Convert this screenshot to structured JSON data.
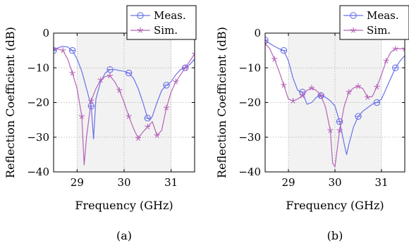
{
  "chart_data": [
    {
      "type": "line",
      "caption": "(a)",
      "xlabel": "Frequency (GHz)",
      "ylabel": "Reflection Coefficient (dB)",
      "xlim": [
        28.5,
        31.5
      ],
      "ylim": [
        -40,
        0
      ],
      "xticks": [
        "29",
        "30",
        "31"
      ],
      "yticks": [
        "0",
        "−10",
        "−20",
        "−30",
        "−40"
      ],
      "grid": true,
      "shaded_band": [
        29.0,
        31.0
      ],
      "legend_position": "top-right",
      "series": [
        {
          "name": "Meas.",
          "color": "#6b72e8",
          "marker": "circle",
          "markers_at": [
            28.5,
            28.9,
            29.3,
            29.7,
            30.1,
            30.5,
            30.9,
            31.3
          ],
          "x": [
            28.5,
            28.6,
            28.7,
            28.8,
            28.9,
            29.0,
            29.1,
            29.2,
            29.3,
            29.35,
            29.4,
            29.5,
            29.6,
            29.7,
            29.8,
            29.9,
            30.0,
            30.1,
            30.2,
            30.3,
            30.4,
            30.5,
            30.55,
            30.6,
            30.7,
            30.8,
            30.9,
            31.0,
            31.1,
            31.2,
            31.3,
            31.4,
            31.5
          ],
          "y": [
            -5,
            -4.2,
            -3.8,
            -4,
            -5,
            -7.5,
            -11,
            -16,
            -21,
            -30.5,
            -19,
            -14,
            -11.5,
            -10.5,
            -10.5,
            -10.8,
            -11,
            -11.5,
            -13,
            -16,
            -20,
            -24.5,
            -25,
            -24,
            -20,
            -16.5,
            -15,
            -14,
            -12,
            -10.5,
            -10,
            -9,
            -7.5
          ]
        },
        {
          "name": "Sim.",
          "color": "#b564b8",
          "marker": "star",
          "markers_at": [
            28.5,
            28.7,
            28.9,
            29.1,
            29.3,
            29.5,
            29.7,
            29.9,
            30.1,
            30.3,
            30.5,
            30.7,
            30.9,
            31.1,
            31.3,
            31.5
          ],
          "x": [
            28.5,
            28.6,
            28.7,
            28.8,
            28.9,
            29.0,
            29.1,
            29.15,
            29.2,
            29.3,
            29.4,
            29.5,
            29.6,
            29.7,
            29.8,
            29.9,
            30.0,
            30.1,
            30.2,
            30.3,
            30.4,
            30.5,
            30.6,
            30.7,
            30.8,
            30.9,
            31.0,
            31.1,
            31.2,
            31.3,
            31.4,
            31.5
          ],
          "y": [
            -4.5,
            -4.6,
            -5,
            -7.5,
            -11.5,
            -16,
            -24,
            -38,
            -30,
            -19.5,
            -16,
            -13.5,
            -12.5,
            -12.3,
            -14,
            -16.5,
            -20,
            -24,
            -27.5,
            -30.3,
            -28.5,
            -27,
            -25.5,
            -29.5,
            -28,
            -21.5,
            -17,
            -14,
            -12,
            -10,
            -8,
            -6
          ]
        }
      ]
    },
    {
      "type": "line",
      "caption": "(b)",
      "xlabel": "Frequency (GHz)",
      "ylabel": "Reflection Coefficient (dB)",
      "xlim": [
        28.5,
        31.5
      ],
      "ylim": [
        -40,
        0
      ],
      "xticks": [
        "29",
        "30",
        "31"
      ],
      "yticks": [
        "0",
        "−10",
        "−20",
        "−30",
        "−40"
      ],
      "grid": true,
      "shaded_band": [
        29.0,
        31.0
      ],
      "legend_position": "top-right",
      "series": [
        {
          "name": "Meas.",
          "color": "#6b72e8",
          "marker": "circle",
          "markers_at": [
            28.5,
            28.9,
            29.3,
            29.7,
            30.1,
            30.5,
            30.9,
            31.3
          ],
          "x": [
            28.5,
            28.6,
            28.7,
            28.8,
            28.9,
            29.0,
            29.1,
            29.2,
            29.3,
            29.4,
            29.5,
            29.6,
            29.7,
            29.8,
            29.9,
            30.0,
            30.1,
            30.2,
            30.25,
            30.3,
            30.4,
            30.5,
            30.6,
            30.7,
            30.8,
            30.9,
            31.0,
            31.1,
            31.2,
            31.3,
            31.4,
            31.5
          ],
          "y": [
            -2,
            -3,
            -3.8,
            -4.5,
            -5,
            -8,
            -13,
            -16.5,
            -17,
            -20.5,
            -20,
            -18.5,
            -18,
            -18.5,
            -19.5,
            -21,
            -25.5,
            -32,
            -35,
            -32,
            -27,
            -24,
            -22.5,
            -21.5,
            -20.5,
            -20,
            -19,
            -16,
            -13,
            -10,
            -8,
            -6.5
          ]
        },
        {
          "name": "Sim.",
          "color": "#b564b8",
          "marker": "star",
          "markers_at": [
            28.5,
            28.7,
            28.9,
            29.1,
            29.3,
            29.5,
            29.7,
            29.9,
            30.1,
            30.3,
            30.5,
            30.7,
            30.9,
            31.1,
            31.3,
            31.5
          ],
          "x": [
            28.5,
            28.6,
            28.7,
            28.8,
            28.9,
            29.0,
            29.1,
            29.2,
            29.3,
            29.4,
            29.5,
            29.6,
            29.7,
            29.8,
            29.9,
            29.95,
            30.0,
            30.1,
            30.2,
            30.3,
            30.4,
            30.5,
            30.6,
            30.7,
            30.8,
            30.9,
            31.0,
            31.1,
            31.2,
            31.3,
            31.4,
            31.5
          ],
          "y": [
            -3,
            -4.5,
            -7.5,
            -11,
            -15,
            -19,
            -19.5,
            -19,
            -18,
            -16.5,
            -15.8,
            -16.5,
            -18,
            -21.5,
            -28,
            -37.5,
            -38.5,
            -28,
            -21,
            -17,
            -15.8,
            -15.3,
            -16,
            -18.5,
            -18.3,
            -15.5,
            -12,
            -8,
            -5.5,
            -4.5,
            -4.5,
            -4.5
          ]
        }
      ]
    }
  ]
}
